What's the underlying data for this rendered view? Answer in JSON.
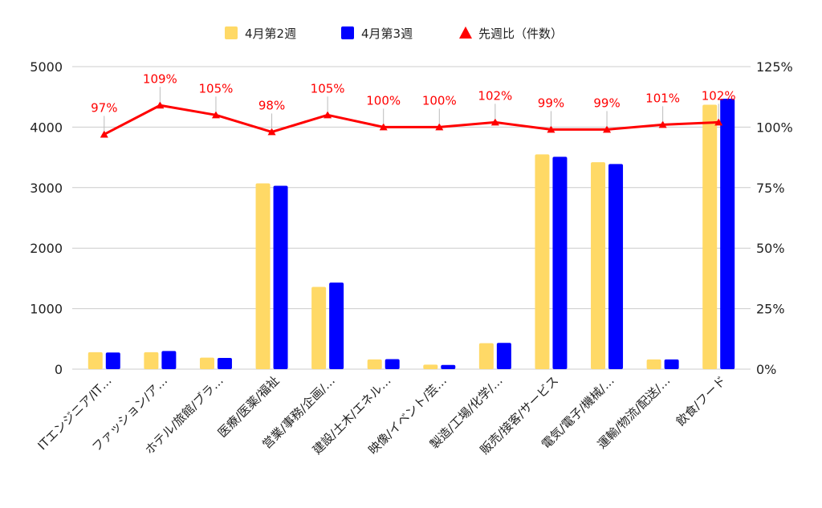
{
  "colors": {
    "series_week2": "#ffd966",
    "series_week3": "#0000ff",
    "ratio_line": "#ff0000",
    "grid": "#cccccc",
    "text": "#222222"
  },
  "legend": {
    "items": [
      {
        "label": "4月第2週",
        "marker": "square",
        "color": "#ffd966"
      },
      {
        "label": "4月第3週",
        "marker": "square",
        "color": "#0000ff"
      },
      {
        "label": "先週比（件数）",
        "marker": "triangle",
        "color": "#ff0000"
      }
    ]
  },
  "chart_data": {
    "type": "bar",
    "combo": "bar+line",
    "categories": [
      "ITエンジニア/IT…",
      "ファッション/ア…",
      "ホテル/旅館/ブラ…",
      "医療/医薬/福祉",
      "営業/事務/企画/…",
      "建設/土木/エネル…",
      "映像/イベント/芸…",
      "製造/工場/化学/…",
      "販売/接客/サービス",
      "電気/電子/機械/…",
      "運輸/物流/配送/…",
      "飲食/フード"
    ],
    "series": [
      {
        "name": "4月第2週",
        "axis": "left",
        "values": [
          280,
          280,
          190,
          3070,
          1360,
          160,
          75,
          430,
          3550,
          3420,
          160,
          4370
        ]
      },
      {
        "name": "4月第3週",
        "axis": "left",
        "values": [
          275,
          300,
          185,
          3030,
          1430,
          165,
          70,
          435,
          3510,
          3390,
          160,
          4470
        ]
      },
      {
        "name": "先週比（件数）",
        "axis": "right",
        "type": "line",
        "values": [
          97,
          109,
          105,
          98,
          105,
          100,
          100,
          102,
          99,
          99,
          101,
          102
        ]
      }
    ],
    "data_labels": [
      "97%",
      "109%",
      "105%",
      "98%",
      "105%",
      "100%",
      "100%",
      "102%",
      "99%",
      "99%",
      "101%",
      "102%"
    ],
    "y_left": {
      "range": [
        0,
        5000
      ],
      "ticks": [
        "0",
        "1000",
        "2000",
        "3000",
        "4000",
        "5000"
      ],
      "tick_values": [
        0,
        1000,
        2000,
        3000,
        4000,
        5000
      ]
    },
    "y_right": {
      "range": [
        0,
        125
      ],
      "ticks": [
        "0%",
        "25%",
        "50%",
        "75%",
        "100%",
        "125%"
      ],
      "tick_values": [
        0,
        25,
        50,
        75,
        100,
        125
      ]
    },
    "grid": true,
    "legend_position": "top"
  }
}
